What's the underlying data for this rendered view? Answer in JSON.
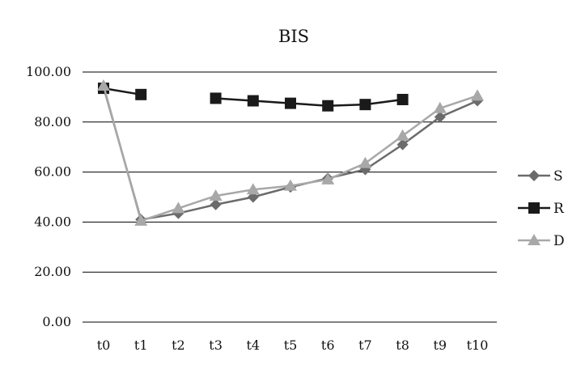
{
  "chart_data": {
    "type": "line",
    "title": "BIS",
    "xlabel": "",
    "ylabel": "",
    "categories": [
      "t0",
      "t1",
      "t2",
      "t3",
      "t4",
      "t5",
      "t6",
      "t7",
      "t8",
      "t9",
      "t10"
    ],
    "y_ticks": [
      "0.00",
      "20.00",
      "40.00",
      "60.00",
      "80.00",
      "100.00"
    ],
    "ylim": [
      0,
      100
    ],
    "grid": "horizontal",
    "legend_position": "right",
    "series": [
      {
        "name": "S",
        "marker": "diamond",
        "color": "#6b6b6b",
        "values": [
          94.0,
          41.0,
          43.5,
          47.0,
          50.0,
          54.0,
          57.5,
          61.0,
          71.0,
          82.0,
          88.5
        ]
      },
      {
        "name": "R",
        "marker": "square",
        "color": "#1a1a1a",
        "values": [
          93.5,
          91.0,
          null,
          89.5,
          88.5,
          87.5,
          86.5,
          87.0,
          89.0,
          null,
          null
        ]
      },
      {
        "name": "D",
        "marker": "triangle",
        "color": "#a8a8a8",
        "values": [
          94.5,
          40.5,
          45.5,
          50.5,
          53.0,
          54.5,
          57.0,
          63.5,
          74.5,
          85.5,
          90.5
        ]
      }
    ]
  }
}
